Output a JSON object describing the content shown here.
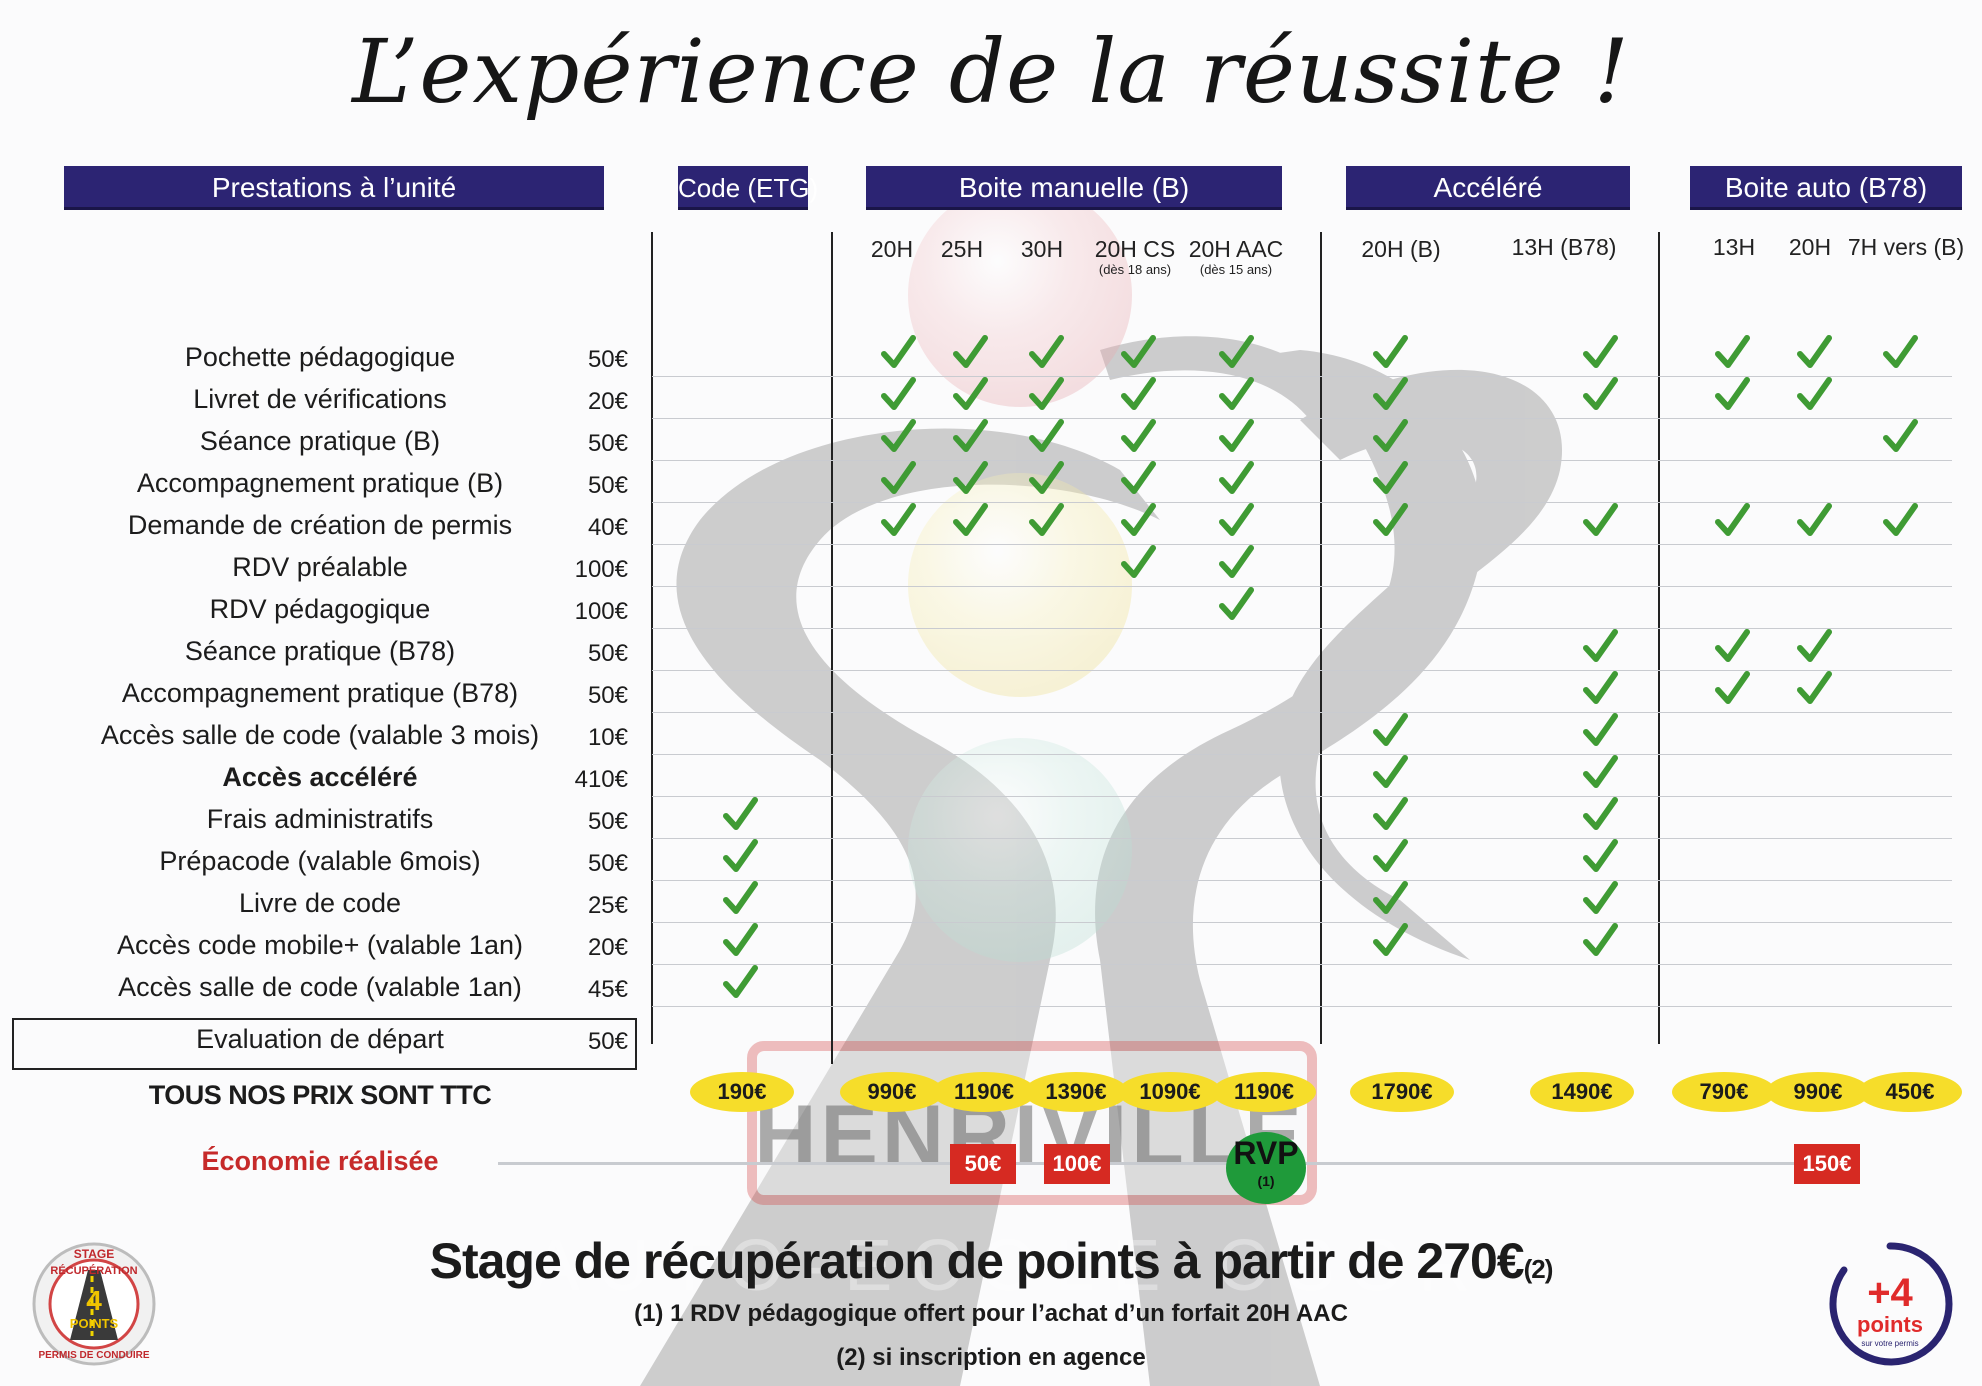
{
  "title": "L’expérience de la réussite !",
  "headers": {
    "prestations": "Prestations à l’unité",
    "code": "Code (ETG)",
    "manuelle": "Boite manuelle (B)",
    "accelere": "Accéléré",
    "auto": "Boite auto (B78)"
  },
  "subheaders": {
    "m20": "20H",
    "m25": "25H",
    "m30": "30H",
    "m20cs": "20H CS",
    "m20cs_note": "(dès 18 ans)",
    "m20aac": "20H AAC",
    "m20aac_note": "(dès 15 ans)",
    "a20b": "20H (B)",
    "a13b78": "13H (B78)",
    "b13": "13H",
    "b20": "20H",
    "b7": "7H vers (B)"
  },
  "rows": [
    {
      "label": "Pochette pédagogique",
      "price": "50€"
    },
    {
      "label": "Livret de vérifications",
      "price": "20€"
    },
    {
      "label": "Séance pratique (B)",
      "price": "50€"
    },
    {
      "label": "Accompagnement pratique (B)",
      "price": "50€"
    },
    {
      "label": "Demande de création de permis",
      "price": "40€"
    },
    {
      "label": "RDV préalable",
      "price": "100€"
    },
    {
      "label": "RDV pédagogique",
      "price": "100€"
    },
    {
      "label": "Séance pratique (B78)",
      "price": "50€"
    },
    {
      "label": "Accompagnement pratique (B78)",
      "price": "50€"
    },
    {
      "label": "Accès salle de code (valable 3 mois)",
      "price": "10€"
    },
    {
      "label": "Accès accéléré",
      "price": "410€"
    },
    {
      "label": "Frais administratifs",
      "price": "50€"
    },
    {
      "label": "Prépacode (valable 6mois)",
      "price": "50€"
    },
    {
      "label": "Livre de code",
      "price": "25€"
    },
    {
      "label": "Accès code mobile+ (valable 1an)",
      "price": "20€"
    },
    {
      "label": "Accès salle de code (valable 1an)",
      "price": "45€"
    },
    {
      "label": "Evaluation de départ",
      "price": "50€"
    }
  ],
  "checks": {
    "code": [
      11,
      12,
      13,
      14,
      15
    ],
    "m20": [
      0,
      1,
      2,
      3,
      4
    ],
    "m25": [
      0,
      1,
      2,
      3,
      4
    ],
    "m30": [
      0,
      1,
      2,
      3,
      4
    ],
    "m20cs": [
      0,
      1,
      2,
      3,
      4,
      5
    ],
    "m20aac": [
      0,
      1,
      2,
      3,
      4,
      5,
      6
    ],
    "a20b": [
      0,
      1,
      2,
      3,
      4,
      9,
      10,
      11,
      12,
      13,
      14
    ],
    "a13b78": [
      0,
      1,
      4,
      7,
      8,
      9,
      10,
      11,
      12,
      13,
      14
    ],
    "b13": [
      0,
      1,
      4,
      7,
      8
    ],
    "b20": [
      0,
      1,
      4,
      7,
      8
    ],
    "b7": [
      0,
      2,
      4
    ]
  },
  "prices": {
    "code": "190€",
    "m20": "990€",
    "m25": "1190€",
    "m30": "1390€",
    "m20cs": "1090€",
    "m20aac": "1190€",
    "a20b": "1790€",
    "a13b78": "1490€",
    "b13": "790€",
    "b20": "990€",
    "b7": "450€"
  },
  "ttc": "TOUS NOS PRIX SONT TTC",
  "economie": {
    "label": "Économie réalisée",
    "m25": "50€",
    "m30": "100€",
    "rvp": "RVP",
    "rvp_note": "(1)",
    "b20": "150€"
  },
  "stage": {
    "text": "Stage de récupération de points à partir de 270€",
    "mark": "(2)"
  },
  "notes": {
    "n1": "(1) 1 RDV pédagogique offert pour l’achat d’un forfait 20H AAC",
    "n2": "(2) si inscription en agence"
  },
  "logo_left": {
    "top": "STAGE",
    "mid": "RÉCUPÉRATION",
    "num": "4",
    "pts": "POINTS",
    "bottom": "PERMIS DE CONDUIRE"
  },
  "logo_right": {
    "num": "+4",
    "pts": "points",
    "sub": "sur votre permis"
  },
  "colors": {
    "header": "#2c2473",
    "check": "#3f9b34",
    "pill": "#f6dd2a",
    "badge": "#d62a22",
    "rvp": "#1f9a3a",
    "eco": "#c62a2a"
  }
}
